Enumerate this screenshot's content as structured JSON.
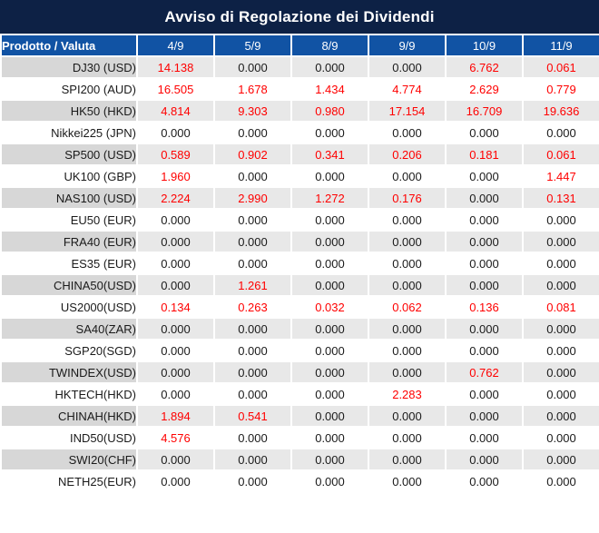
{
  "title": "Avviso di Regolazione dei Dividendi",
  "table": {
    "product_header": "Prodotto / Valuta",
    "date_headers": [
      "4/9",
      "5/9",
      "8/9",
      "9/9",
      "10/9",
      "11/9"
    ],
    "rows": [
      {
        "product": "DJ30 (USD)",
        "values": [
          "14.138",
          "0.000",
          "0.000",
          "0.000",
          "6.762",
          "0.061"
        ]
      },
      {
        "product": "SPI200 (AUD)",
        "values": [
          "16.505",
          "1.678",
          "1.434",
          "4.774",
          "2.629",
          "0.779"
        ]
      },
      {
        "product": "HK50 (HKD)",
        "values": [
          "4.814",
          "9.303",
          "0.980",
          "17.154",
          "16.709",
          "19.636"
        ]
      },
      {
        "product": "Nikkei225 (JPN)",
        "values": [
          "0.000",
          "0.000",
          "0.000",
          "0.000",
          "0.000",
          "0.000"
        ]
      },
      {
        "product": "SP500 (USD)",
        "values": [
          "0.589",
          "0.902",
          "0.341",
          "0.206",
          "0.181",
          "0.061"
        ]
      },
      {
        "product": "UK100 (GBP)",
        "values": [
          "1.960",
          "0.000",
          "0.000",
          "0.000",
          "0.000",
          "1.447"
        ]
      },
      {
        "product": "NAS100 (USD)",
        "values": [
          "2.224",
          "2.990",
          "1.272",
          "0.176",
          "0.000",
          "0.131"
        ]
      },
      {
        "product": "EU50 (EUR)",
        "values": [
          "0.000",
          "0.000",
          "0.000",
          "0.000",
          "0.000",
          "0.000"
        ]
      },
      {
        "product": "FRA40 (EUR)",
        "values": [
          "0.000",
          "0.000",
          "0.000",
          "0.000",
          "0.000",
          "0.000"
        ]
      },
      {
        "product": "ES35 (EUR)",
        "values": [
          "0.000",
          "0.000",
          "0.000",
          "0.000",
          "0.000",
          "0.000"
        ]
      },
      {
        "product": "CHINA50(USD)",
        "values": [
          "0.000",
          "1.261",
          "0.000",
          "0.000",
          "0.000",
          "0.000"
        ]
      },
      {
        "product": "US2000(USD)",
        "values": [
          "0.134",
          "0.263",
          "0.032",
          "0.062",
          "0.136",
          "0.081"
        ]
      },
      {
        "product": "SA40(ZAR)",
        "values": [
          "0.000",
          "0.000",
          "0.000",
          "0.000",
          "0.000",
          "0.000"
        ]
      },
      {
        "product": "SGP20(SGD)",
        "values": [
          "0.000",
          "0.000",
          "0.000",
          "0.000",
          "0.000",
          "0.000"
        ]
      },
      {
        "product": "TWINDEX(USD)",
        "values": [
          "0.000",
          "0.000",
          "0.000",
          "0.000",
          "0.762",
          "0.000"
        ]
      },
      {
        "product": "HKTECH(HKD)",
        "values": [
          "0.000",
          "0.000",
          "0.000",
          "2.283",
          "0.000",
          "0.000"
        ]
      },
      {
        "product": "CHINAH(HKD)",
        "values": [
          "1.894",
          "0.541",
          "0.000",
          "0.000",
          "0.000",
          "0.000"
        ]
      },
      {
        "product": "IND50(USD)",
        "values": [
          "4.576",
          "0.000",
          "0.000",
          "0.000",
          "0.000",
          "0.000"
        ]
      },
      {
        "product": "SWI20(CHF)",
        "values": [
          "0.000",
          "0.000",
          "0.000",
          "0.000",
          "0.000",
          "0.000"
        ]
      },
      {
        "product": "NETH25(EUR)",
        "values": [
          "0.000",
          "0.000",
          "0.000",
          "0.000",
          "0.000",
          "0.000"
        ]
      }
    ]
  },
  "colors": {
    "title_bg": "#0d2145",
    "header_bg": "#1153a4",
    "row_gray_product": "#d7d7d7",
    "row_gray_value": "#e8e8e8",
    "row_white": "#ffffff",
    "value_nonzero": "#ff0000",
    "value_zero": "#1a1a1a",
    "grid_line": "#ffffff",
    "bottom_border": "#d9d9d9"
  }
}
